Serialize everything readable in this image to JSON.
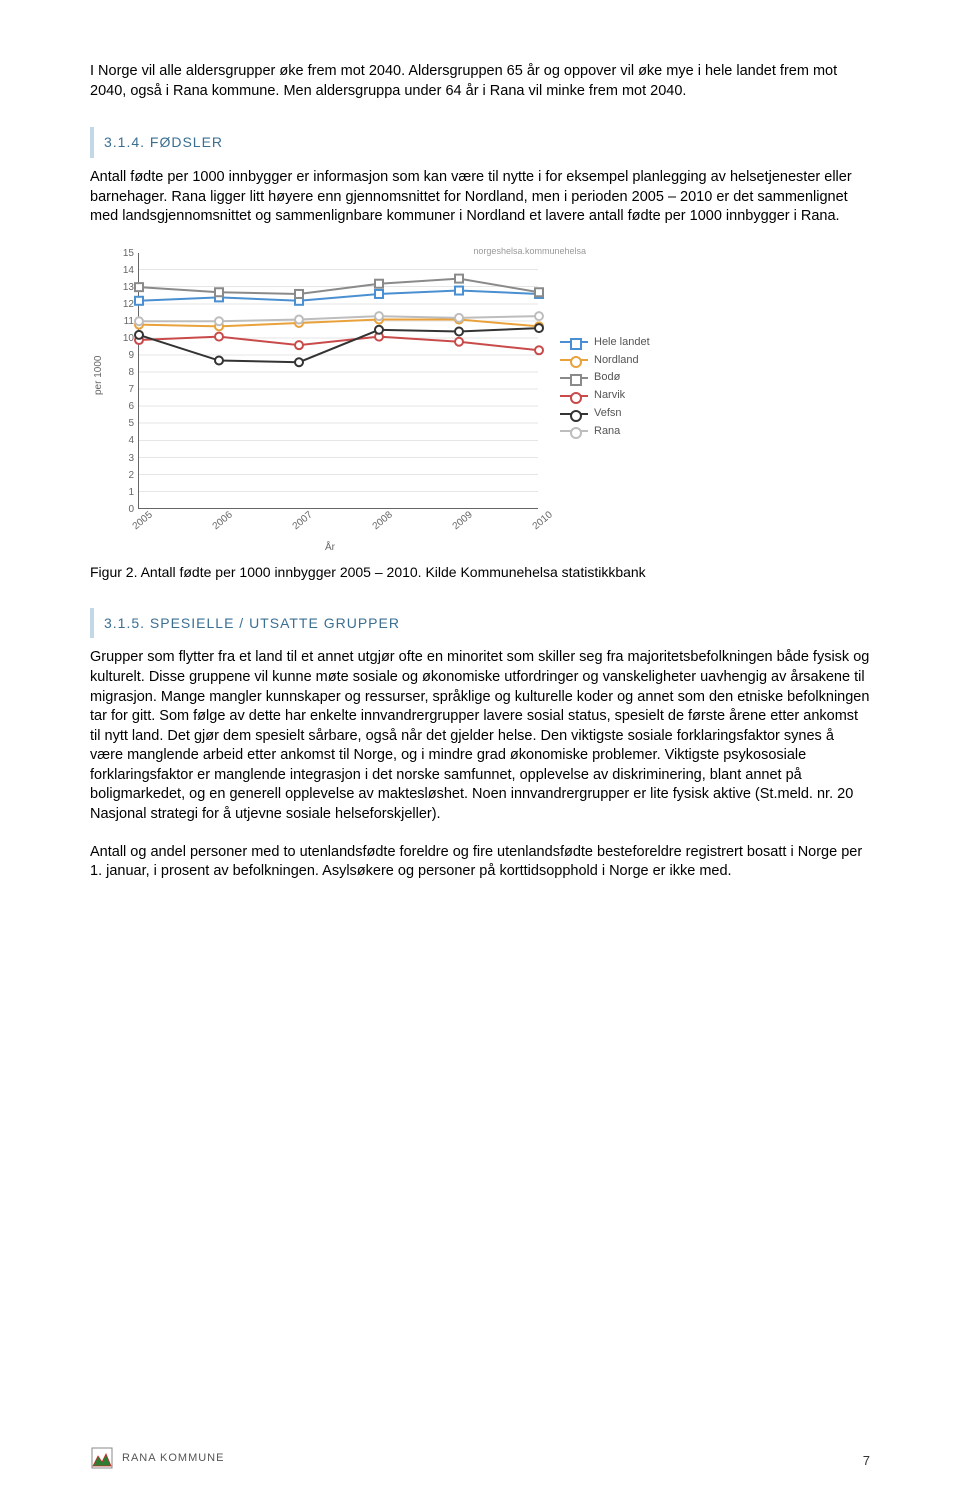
{
  "para1": "I Norge vil alle aldersgrupper øke frem mot 2040. Aldersgruppen 65 år og oppover vil øke mye i hele landet frem mot 2040, også i Rana kommune. Men aldersgruppa under 64 år i Rana vil minke frem mot 2040.",
  "sec1": "3.1.4. FØDSLER",
  "para2": "Antall fødte per 1000 innbygger er informasjon som kan være til nytte i for eksempel planlegging av helsetjenester eller barnehager. Rana ligger litt høyere enn gjennomsnittet for Nordland, men i perioden 2005 – 2010 er det sammenlignet med landsgjennomsnittet og sammenlignbare kommuner i Nordland et lavere antall fødte per 1000 innbygger i Rana.",
  "chart": {
    "ylabel": "per 1000",
    "xlabel": "År",
    "credit": "norgeshelsa.kommunehelsa",
    "ymax": 15,
    "years": [
      "2005",
      "2006",
      "2007",
      "2008",
      "2009",
      "2010"
    ],
    "series": [
      {
        "name": "Hele landet",
        "color": "#4a8fd1",
        "shape": "0",
        "vals": [
          12.2,
          12.4,
          12.2,
          12.6,
          12.8,
          12.6
        ]
      },
      {
        "name": "Nordland",
        "color": "#e9a23b",
        "shape": "50%",
        "vals": [
          10.8,
          10.7,
          10.9,
          11.1,
          11.1,
          10.7
        ]
      },
      {
        "name": "Bodø",
        "color": "#8a8a8a",
        "shape": "0",
        "vals": [
          13.0,
          12.7,
          12.6,
          13.2,
          13.5,
          12.7
        ]
      },
      {
        "name": "Narvik",
        "color": "#c94a4a",
        "shape": "50%",
        "vals": [
          9.9,
          10.1,
          9.6,
          10.1,
          9.8,
          9.3
        ]
      },
      {
        "name": "Vefsn",
        "color": "#333333",
        "shape": "50%",
        "vals": [
          10.2,
          8.7,
          8.6,
          10.5,
          10.4,
          10.6
        ]
      },
      {
        "name": "Rana",
        "color": "#bdbdbd",
        "shape": "50%",
        "vals": [
          11.0,
          11.0,
          11.1,
          11.3,
          11.2,
          11.3
        ]
      }
    ]
  },
  "caption": "Figur 2. Antall fødte per 1000 innbygger 2005 – 2010. Kilde Kommunehelsa statistikkbank",
  "sec2": "3.1.5. SPESIELLE / UTSATTE GRUPPER",
  "para3": "Grupper som flytter fra et land til et annet utgjør ofte en minoritet som skiller seg fra majoritetsbefolkningen både fysisk og kulturelt. Disse gruppene vil kunne møte sosiale og økonomiske utfordringer og vanskeligheter uavhengig av årsakene til migrasjon. Mange mangler kunnskaper og ressurser, språklige og kulturelle koder og annet som den etniske befolkningen tar for gitt. Som følge av dette har enkelte innvandrergrupper lavere sosial status, spesielt de første årene etter ankomst til nytt land. Det gjør dem spesielt sårbare, også når det gjelder helse. Den viktigste sosiale forklaringsfaktor synes å være manglende arbeid etter ankomst til Norge, og i mindre grad økonomiske problemer. Viktigste psykososiale forklaringsfaktor er manglende integrasjon i det norske samfunnet, opplevelse av diskriminering, blant annet på boligmarkedet, og en generell opplevelse av maktesløshet. Noen innvandrergrupper er lite fysisk aktive (St.meld. nr. 20 Nasjonal strategi for å utjevne sosiale helseforskjeller).",
  "para4": "Antall og andel personer med to utenlandsfødte foreldre og fire utenlandsfødte besteforeldre registrert bosatt i Norge per 1. januar, i prosent av befolkningen. Asylsøkere og personer på korttidsopphold i Norge er ikke med.",
  "brand": "RANA KOMMUNE",
  "pagenum": "7"
}
